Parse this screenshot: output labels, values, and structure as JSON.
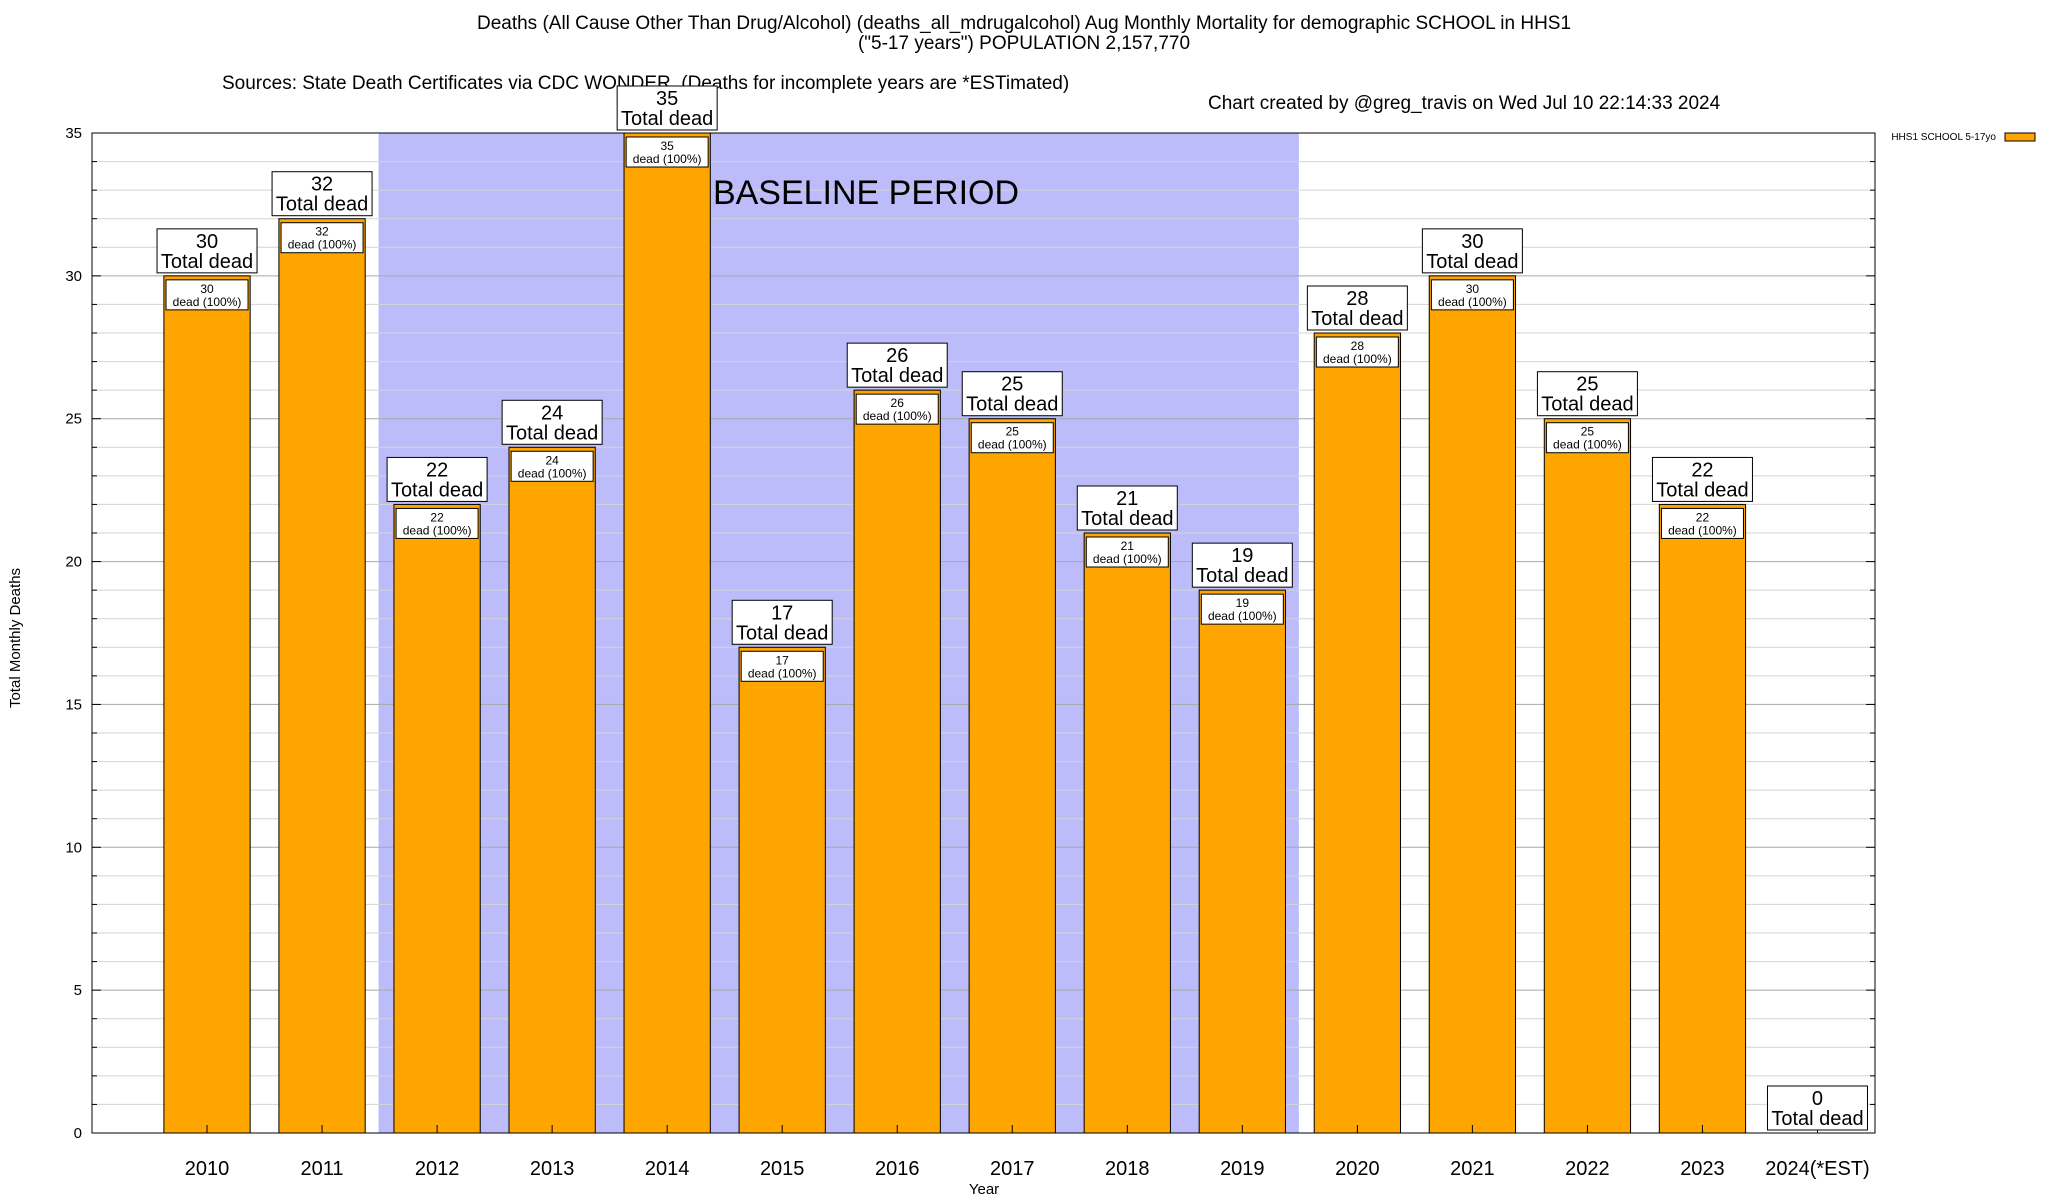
{
  "chart_data": {
    "type": "bar",
    "title": "Deaths (All Cause Other Than Drug/Alcohol) (deaths_all_mdrugalcohol) Aug Monthly Mortality for demographic SCHOOL in HHS1",
    "subtitle": "(\"5-17 years\") POPULATION 2,157,770",
    "sources": "Sources: State Death Certificates via CDC WONDER. (Deaths for incomplete years are *ESTimated)",
    "credit": "Chart created by @greg_travis on Wed Jul 10 22:14:33 2024",
    "xlabel": "Year",
    "ylabel": "Total Monthly Deaths",
    "ylim": [
      0,
      35
    ],
    "yticks": [
      0,
      5,
      10,
      15,
      20,
      25,
      30,
      35
    ],
    "categories": [
      "2010",
      "2011",
      "2012",
      "2013",
      "2014",
      "2015",
      "2016",
      "2017",
      "2018",
      "2019",
      "2020",
      "2021",
      "2022",
      "2023",
      "2024(*EST)"
    ],
    "series": [
      {
        "name": "HHS1 SCHOOL 5-17yo",
        "color": "#ffa500",
        "values": [
          30,
          32,
          22,
          24,
          35,
          17,
          26,
          25,
          21,
          19,
          28,
          30,
          25,
          22,
          0
        ]
      }
    ],
    "top_label_suffix": "Total dead",
    "inner_label_suffix": "dead (100%)",
    "baseline": {
      "label": "BASELINE PERIOD",
      "from": "2012",
      "to": "2019",
      "color": "#bcbcfa"
    },
    "grid": true,
    "legend_position": "top-right"
  }
}
